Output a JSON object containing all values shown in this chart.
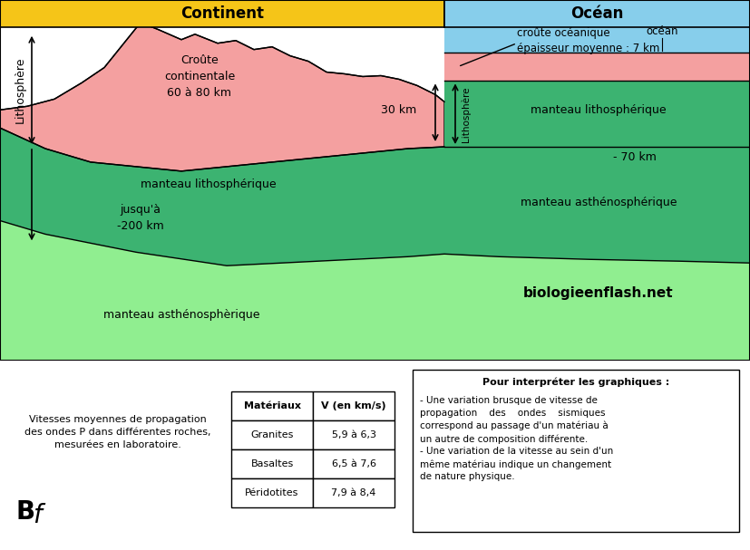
{
  "title_continent": "Continent",
  "title_ocean": "Océan",
  "header_bg_continent": "#F5C518",
  "header_bg_ocean": "#87CEEB",
  "ocean_water_color": "#87CEEB",
  "oceanic_crust_color": "#F4A0A0",
  "continental_crust_color": "#F4A0A0",
  "litho_mantle_color": "#3CB371",
  "asthenosphere_color": "#90EE90",
  "white": "#FFFFFF",
  "black": "#000000",
  "text_croute_continentale": "Croûte\ncontinentale\n60 à 80 km",
  "text_30km": "30 km",
  "text_200km": "jusqu'à\n-200 km",
  "text_70km": "- 70 km",
  "text_lithosphere": "Lithosphère",
  "text_manteau_litho_left": "manteau lithosphérique",
  "text_manteau_litho_right": "manteau lithosphérique",
  "text_manteau_asthen_right": "manteau asthénosphérique",
  "text_manteau_asthen_bottom": "manteau asthénosphèrique",
  "text_croute_oceanique": "croûte océanique\népaisseur moyenne : 7 km",
  "text_ocean_label": "océan",
  "text_website": "biologieenflash.net",
  "table_title_mat": "Matériaux",
  "table_title_v": "V (en km/s)",
  "table_rows": [
    [
      "Granites",
      "5,9 à 6,3"
    ],
    [
      "Basaltes",
      "6,5 à 7,6"
    ],
    [
      "Péridotites",
      "7,9 à 8,4"
    ]
  ],
  "note_title": "Pour interpréter les graphiques",
  "note_text1": "- Une variation brusque de vitesse de propagation des ondes sismiques\ncorrespond au passage d'un matériau à un autre de composition différente.\n- Une variation de la vitesse au sein d'un même matériau indique un changement\nde nature physique.",
  "caption_text": "Vitesses moyennes de propagation\ndes ondes P dans différentes roches,\nmesurées en laboratoire."
}
